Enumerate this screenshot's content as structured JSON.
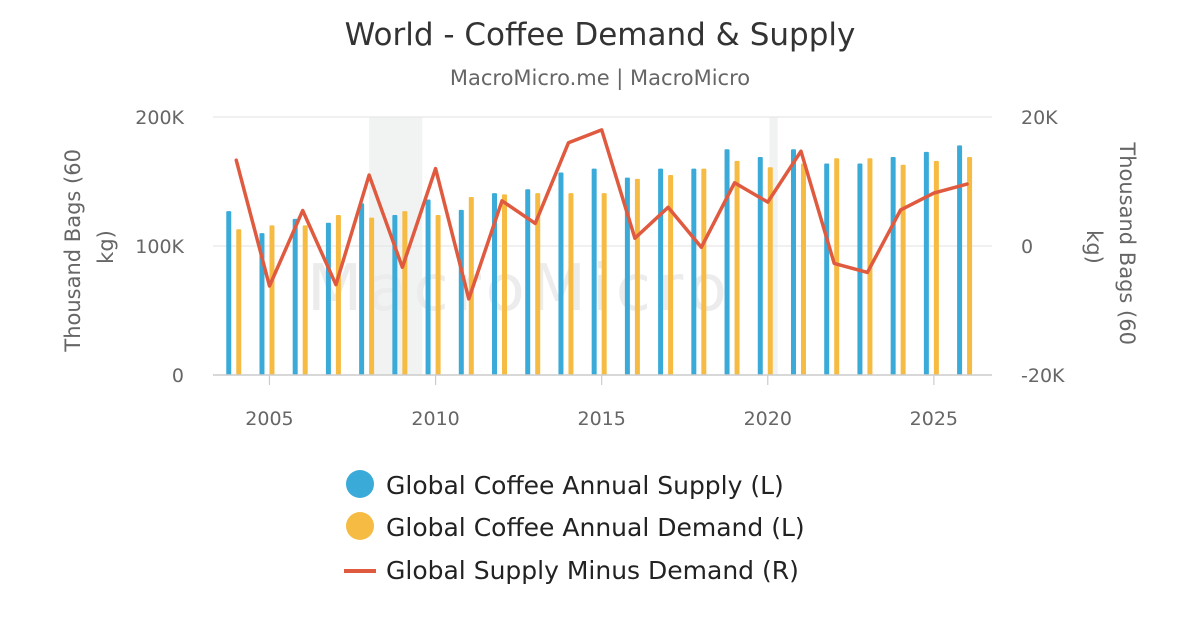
{
  "chart_data": {
    "type": "bar+line",
    "title": "World - Coffee Demand & Supply",
    "subtitle": "MacroMicro.me | MacroMicro",
    "watermark": "MacroMicro",
    "left_axis": {
      "title": "Thousand Bags (60 kg)",
      "title_lines": [
        "Thousand Bags (60",
        "kg)"
      ],
      "range": [
        0,
        200000
      ],
      "ticks": [
        0,
        100000,
        200000
      ],
      "tick_labels": [
        "0",
        "100K",
        "200K"
      ]
    },
    "right_axis": {
      "title": "Thousand Bags (60 kg)",
      "title_lines": [
        "Thousand Bags (60",
        "kg)"
      ],
      "range": [
        -20000,
        20000
      ],
      "ticks": [
        -20000,
        0,
        20000
      ],
      "tick_labels": [
        "-20K",
        "0",
        "20K"
      ]
    },
    "x_axis": {
      "range": [
        2003.3,
        2026.75
      ],
      "ticks": [
        2005,
        2010,
        2015,
        2020,
        2025
      ],
      "tick_labels": [
        "2005",
        "2010",
        "2015",
        "2020",
        "2025"
      ]
    },
    "recession_bands": [
      [
        2008.0,
        2009.6
      ],
      [
        2020.05,
        2020.3
      ]
    ],
    "categories": [
      2004,
      2005,
      2006,
      2007,
      2008,
      2009,
      2010,
      2011,
      2012,
      2013,
      2014,
      2015,
      2016,
      2017,
      2018,
      2019,
      2020,
      2021,
      2022,
      2023,
      2024,
      2025,
      2026
    ],
    "series": [
      {
        "name": "Global Coffee Annual Supply (L)",
        "type": "bar",
        "axis": "left",
        "color": "#3aabd8",
        "values": [
          127000,
          110000,
          121000,
          118000,
          133000,
          124000,
          136000,
          128000,
          141000,
          144000,
          157000,
          160000,
          153000,
          160000,
          160000,
          175000,
          169000,
          175000,
          164000,
          164000,
          169000,
          173000,
          178000
        ]
      },
      {
        "name": "Global Coffee Annual Demand (L)",
        "type": "bar",
        "axis": "left",
        "color": "#f6bb42",
        "values": [
          113000,
          116000,
          116000,
          124000,
          122000,
          127000,
          124000,
          138000,
          140000,
          141000,
          141000,
          141000,
          152000,
          155000,
          160000,
          166000,
          161000,
          164000,
          168000,
          168000,
          163000,
          166000,
          169000
        ]
      },
      {
        "name": "Global Supply Minus Demand (R)",
        "type": "line",
        "axis": "right",
        "color": "#e05a3f",
        "values": [
          13300,
          -6200,
          5500,
          -6000,
          11000,
          -3300,
          12000,
          -8200,
          7000,
          3500,
          16000,
          18000,
          1200,
          6000,
          -200,
          9800,
          6800,
          14700,
          -2700,
          -4100,
          5600,
          8200,
          9600
        ]
      }
    ],
    "legend": [
      {
        "label": "Global Coffee Annual Supply (L)",
        "marker": "circle",
        "color": "#3aabd8"
      },
      {
        "label": "Global Coffee Annual Demand (L)",
        "marker": "circle",
        "color": "#f6bb42"
      },
      {
        "label": "Global Supply Minus Demand (R)",
        "marker": "line",
        "color": "#e05a3f"
      }
    ]
  }
}
